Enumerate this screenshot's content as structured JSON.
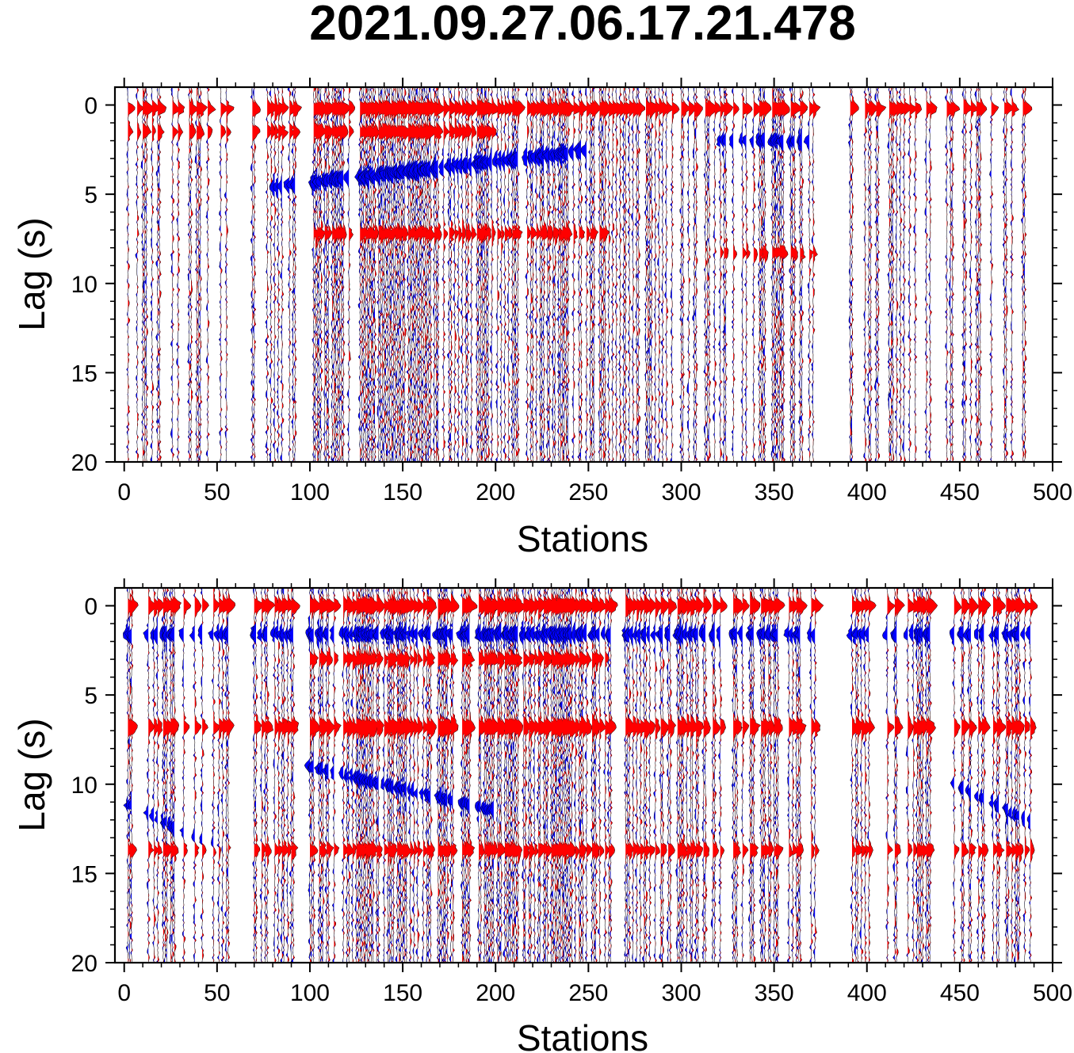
{
  "title": "2021.09.27.06.17.21.478",
  "colors": {
    "positive": "#ff0000",
    "negative": "#0000ff",
    "outline": "#000000",
    "frame": "#000000"
  },
  "chart_data": [
    {
      "type": "wiggle",
      "xlabel": "Stations",
      "ylabel": "Lag (s)",
      "xlim": [
        -5,
        500
      ],
      "ylim": [
        -1,
        20
      ],
      "y_inverted": true,
      "xticks": [
        "0",
        "50",
        "100",
        "150",
        "200",
        "250",
        "300",
        "350",
        "400",
        "450",
        "500"
      ],
      "yticks": [
        "0",
        "5",
        "10",
        "15",
        "20"
      ],
      "station_groups": [
        [
          2,
          56
        ],
        [
          69,
          92
        ],
        [
          100,
          213
        ],
        [
          215,
          318
        ],
        [
          320,
          372
        ],
        [
          390,
          436
        ],
        [
          443,
          488
        ]
      ],
      "fill_positive": "red",
      "fill_negative": "blue"
    },
    {
      "type": "wiggle",
      "xlabel": "Stations",
      "ylabel": "Lag (s)",
      "xlim": [
        -5,
        500
      ],
      "ylim": [
        -1,
        20
      ],
      "y_inverted": true,
      "xticks": [
        "0",
        "50",
        "100",
        "150",
        "200",
        "250",
        "300",
        "350",
        "400",
        "450",
        "500"
      ],
      "yticks": [
        "0",
        "5",
        "10",
        "15",
        "20"
      ],
      "station_groups": [
        [
          2,
          56
        ],
        [
          69,
          92
        ],
        [
          100,
          213
        ],
        [
          215,
          318
        ],
        [
          320,
          372
        ],
        [
          390,
          436
        ],
        [
          443,
          488
        ]
      ],
      "fill_positive": "red",
      "fill_negative": "blue"
    }
  ]
}
